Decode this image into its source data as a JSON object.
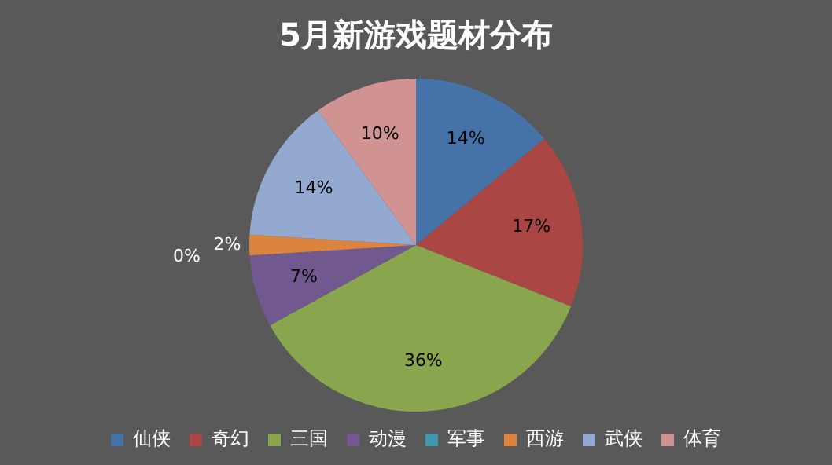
{
  "chart_data": {
    "type": "pie",
    "title": "5月新游戏题材分布",
    "categories": [
      "仙侠",
      "奇幻",
      "三国",
      "动漫",
      "军事",
      "西游",
      "武侠",
      "体育"
    ],
    "values": [
      14,
      17,
      36,
      7,
      0,
      2,
      14,
      10
    ],
    "value_labels": [
      "14%",
      "17%",
      "36%",
      "7%",
      "0%",
      "2%",
      "14%",
      "10%"
    ],
    "colors": [
      "#4572a7",
      "#aa4643",
      "#89a54e",
      "#71588f",
      "#4198af",
      "#db843d",
      "#93a9cf",
      "#d19392"
    ],
    "legend": "bottom"
  }
}
